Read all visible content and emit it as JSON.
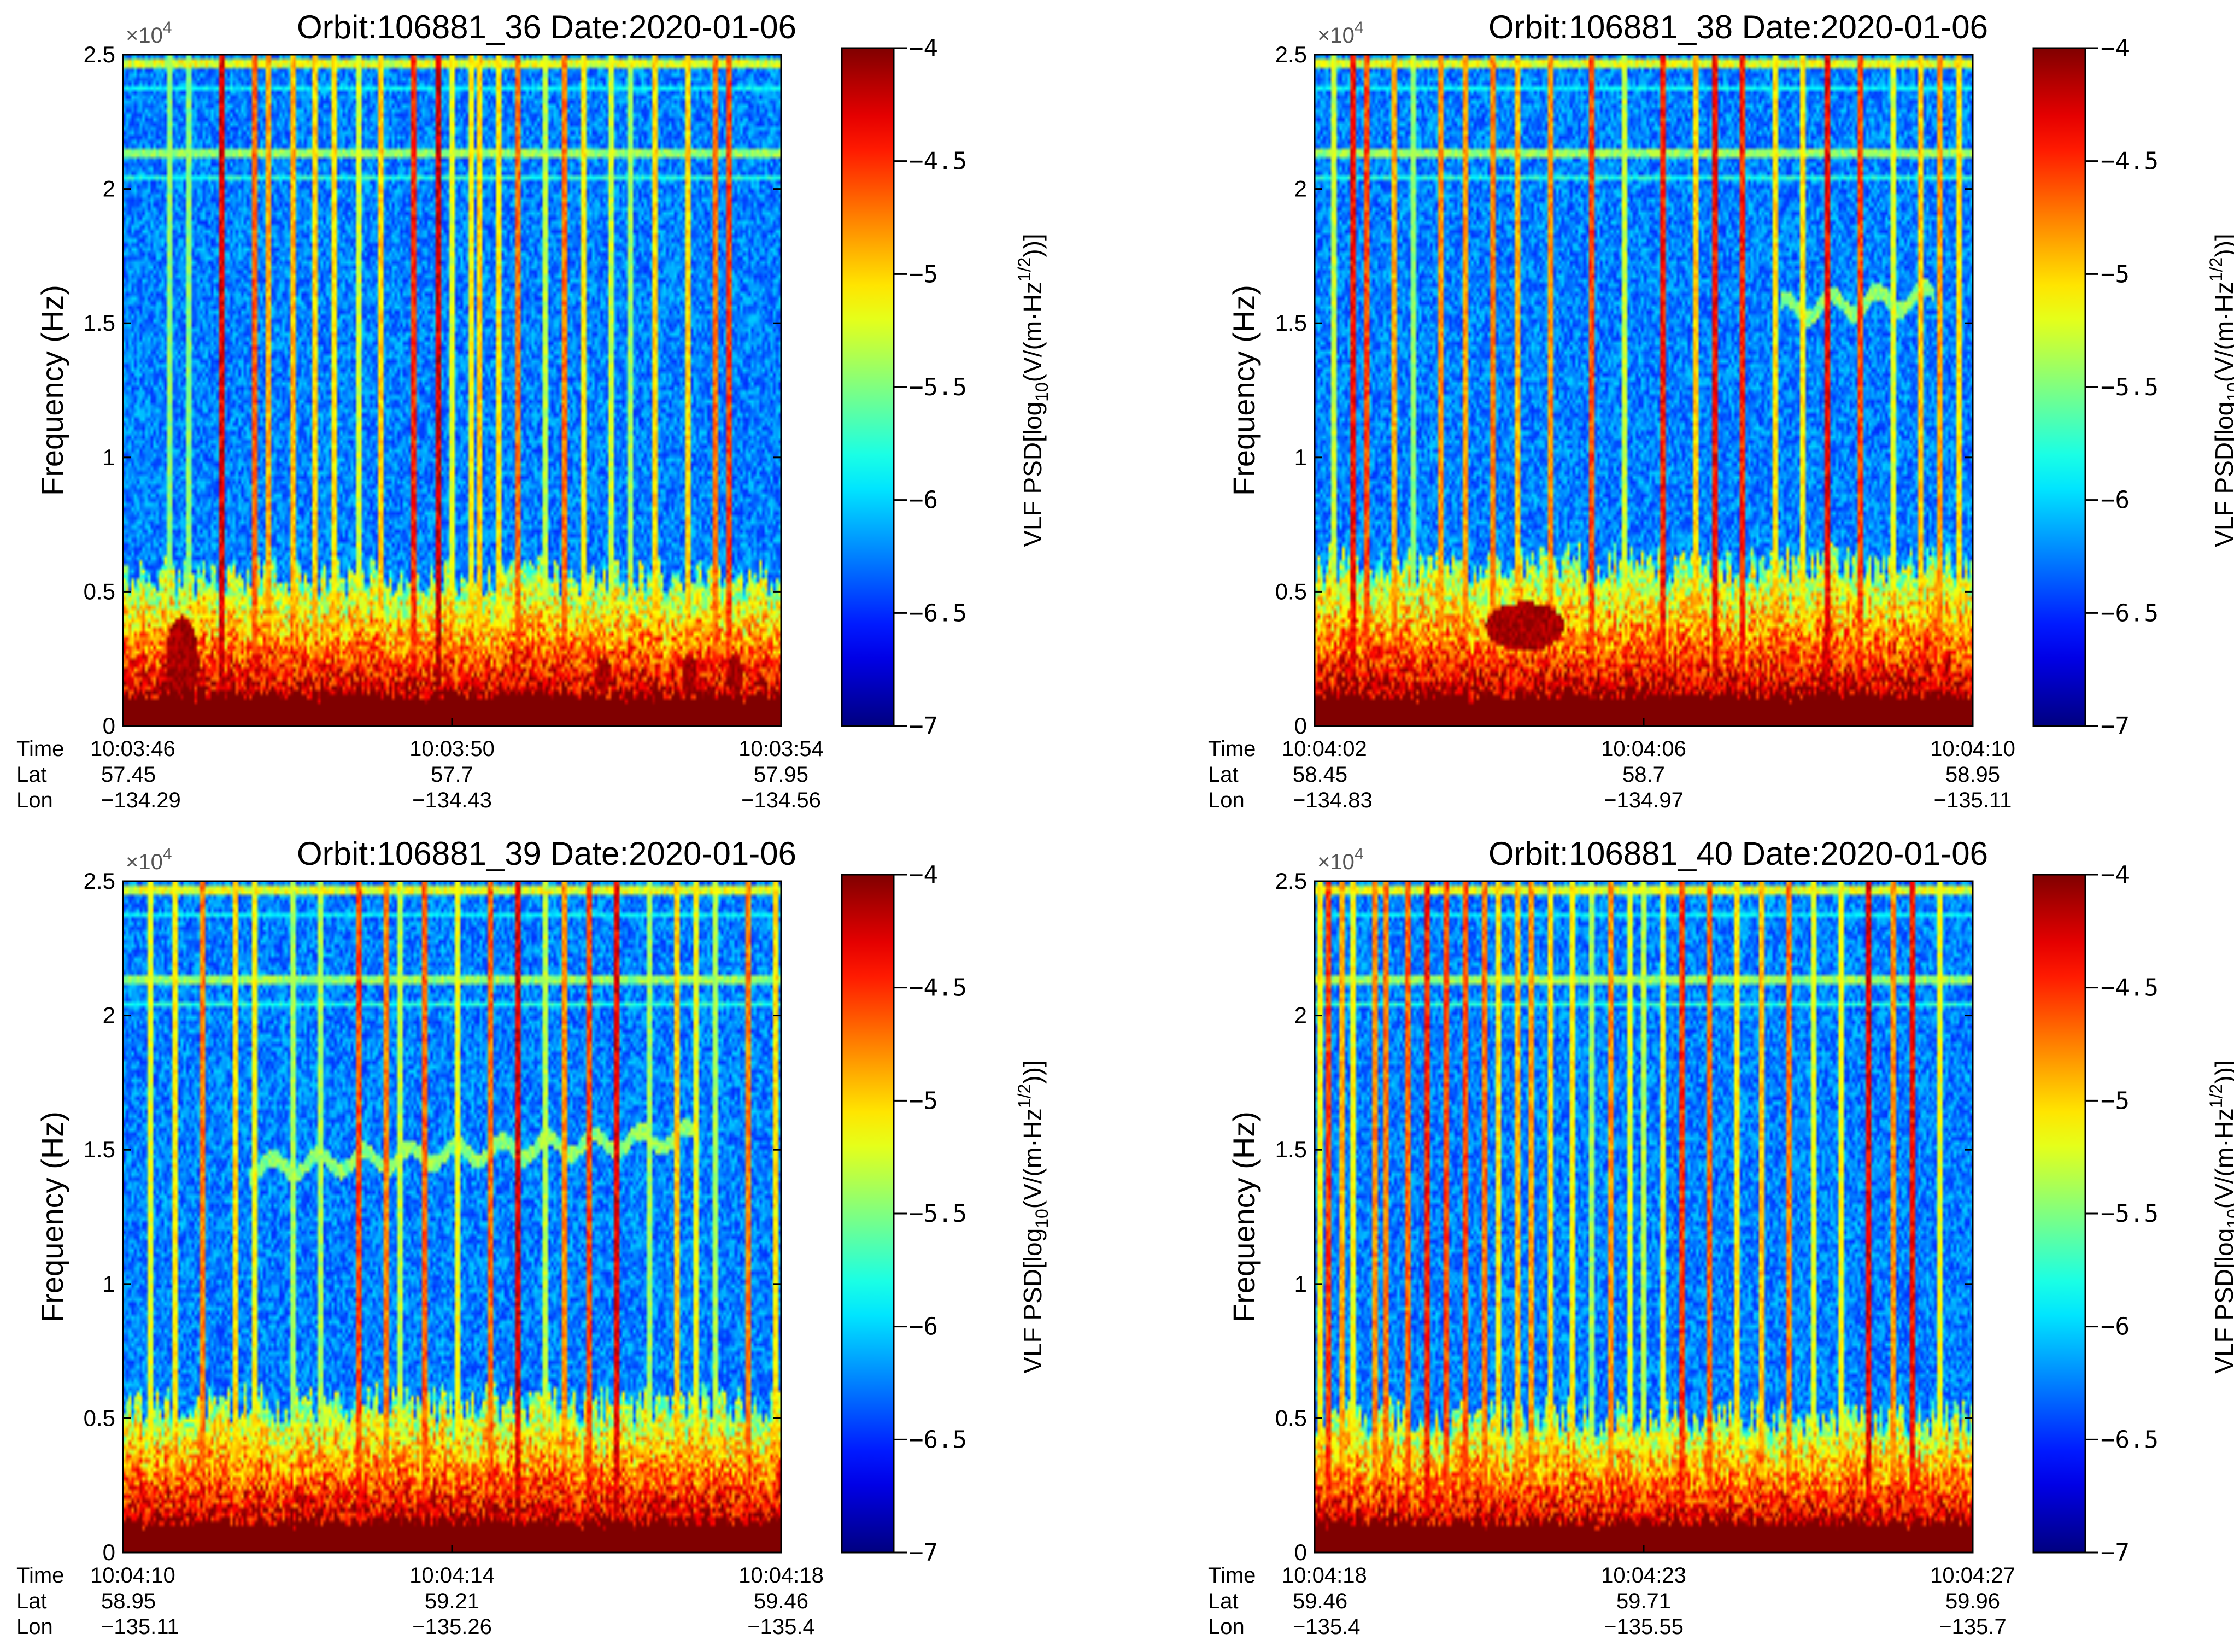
{
  "figure": {
    "colormap": "jet",
    "colors": {
      "jet_dark_blue": "#00008f",
      "jet_blue": "#0000ff",
      "jet_cyan": "#00ffff",
      "jet_yellow": "#ffff00",
      "jet_red": "#ff0000",
      "jet_dark_red": "#800000",
      "axis": "#000000",
      "background": "#ffffff"
    }
  },
  "chart_data": [
    {
      "type": "heatmap",
      "title": "Orbit:106881_36  Date:2020-01-06",
      "ylabel": "Frequency (Hz)",
      "y_multiplier": "×10",
      "y_multiplier_exp": "4",
      "ylim": [
        0,
        25000
      ],
      "y_ticks": [
        "0",
        "0.5",
        "1",
        "1.5",
        "2",
        "2.5"
      ],
      "x_ticks": {
        "Time": [
          "10:03:46",
          "10:03:50",
          "10:03:54"
        ],
        "Lat": [
          "57.45",
          "57.7",
          "57.95"
        ],
        "Lon": [
          "−134.29",
          "−134.43",
          "−134.56"
        ]
      },
      "row_labels": [
        "Time",
        "Lat",
        "Lon"
      ],
      "colorbar": {
        "label_prefix": "VLF PSD[log",
        "label_sub": "10",
        "label_mid": "(V/(m·Hz",
        "label_sup": "1/2",
        "label_suffix": "))]",
        "ticks": [
          "−4",
          "−4.5",
          "−5",
          "−5.5",
          "−6",
          "−6.5",
          "−7"
        ],
        "range": [
          -7,
          -4
        ]
      },
      "features": {
        "seed": 36,
        "spikes": [
          0.07,
          0.1,
          0.15,
          0.2,
          0.22,
          0.26,
          0.29,
          0.32,
          0.36,
          0.39,
          0.44,
          0.48,
          0.5,
          0.53,
          0.54,
          0.57,
          0.6,
          0.64,
          0.67,
          0.7,
          0.74,
          0.77,
          0.81,
          0.86,
          0.9,
          0.92
        ],
        "blobs": [
          {
            "t": 0.09,
            "f": 2400,
            "dt": 0.025,
            "df": 1700
          },
          {
            "t": 0.73,
            "f": 1900,
            "dt": 0.012,
            "df": 700
          },
          {
            "t": 0.86,
            "f": 1900,
            "dt": 0.012,
            "df": 800
          },
          {
            "t": 0.93,
            "f": 1900,
            "dt": 0.012,
            "df": 800
          }
        ],
        "traces": [],
        "lowband_height": 5500
      }
    },
    {
      "type": "heatmap",
      "title": "Orbit:106881_38  Date:2020-01-06",
      "ylabel": "Frequency (Hz)",
      "y_multiplier": "×10",
      "y_multiplier_exp": "4",
      "ylim": [
        0,
        25000
      ],
      "y_ticks": [
        "0",
        "0.5",
        "1",
        "1.5",
        "2",
        "2.5"
      ],
      "x_ticks": {
        "Time": [
          "10:04:02",
          "10:04:06",
          "10:04:10"
        ],
        "Lat": [
          "58.45",
          "58.7",
          "58.95"
        ],
        "Lon": [
          "−134.83",
          "−134.97",
          "−135.11"
        ]
      },
      "row_labels": [
        "Time",
        "Lat",
        "Lon"
      ],
      "colorbar": {
        "label_prefix": "VLF PSD[log",
        "label_sub": "10",
        "label_mid": "(V/(m·Hz",
        "label_sup": "1/2",
        "label_suffix": "))]",
        "ticks": [
          "−4",
          "−4.5",
          "−5",
          "−5.5",
          "−6",
          "−6.5",
          "−7"
        ],
        "range": [
          -7,
          -4
        ]
      },
      "features": {
        "seed": 38,
        "spikes": [
          0.03,
          0.06,
          0.08,
          0.12,
          0.15,
          0.19,
          0.23,
          0.27,
          0.31,
          0.36,
          0.42,
          0.47,
          0.53,
          0.58,
          0.61,
          0.65,
          0.7,
          0.74,
          0.78,
          0.83,
          0.88,
          0.92,
          0.95,
          0.98
        ],
        "blobs": [
          {
            "t": 0.32,
            "f": 3700,
            "dt": 0.06,
            "df": 900
          }
        ],
        "traces": [
          {
            "t0": 0.71,
            "t1": 0.94,
            "f0": 15500,
            "f1": 16000,
            "wobble": 400
          }
        ],
        "lowband_height": 6000
      }
    },
    {
      "type": "heatmap",
      "title": "Orbit:106881_39  Date:2020-01-06",
      "ylabel": "Frequency (Hz)",
      "y_multiplier": "×10",
      "y_multiplier_exp": "4",
      "ylim": [
        0,
        25000
      ],
      "y_ticks": [
        "0",
        "0.5",
        "1",
        "1.5",
        "2",
        "2.5"
      ],
      "x_ticks": {
        "Time": [
          "10:04:10",
          "10:04:14",
          "10:04:18"
        ],
        "Lat": [
          "58.95",
          "59.21",
          "59.46"
        ],
        "Lon": [
          "−135.11",
          "−135.26",
          "−135.4"
        ]
      },
      "row_labels": [
        "Time",
        "Lat",
        "Lon"
      ],
      "colorbar": {
        "label_prefix": "VLF PSD[log",
        "label_sub": "10",
        "label_mid": "(V/(m·Hz",
        "label_sup": "1/2",
        "label_suffix": "))]",
        "ticks": [
          "−4",
          "−4.5",
          "−5",
          "−5.5",
          "−6",
          "−6.5",
          "−7"
        ],
        "range": [
          -7,
          -4
        ]
      },
      "features": {
        "seed": 39,
        "spikes": [
          0.04,
          0.08,
          0.12,
          0.17,
          0.2,
          0.26,
          0.3,
          0.36,
          0.4,
          0.42,
          0.46,
          0.51,
          0.56,
          0.6,
          0.64,
          0.67,
          0.71,
          0.75,
          0.8,
          0.84,
          0.87,
          0.9,
          0.95,
          0.99
        ],
        "blobs": [],
        "traces": [
          {
            "t0": 0.19,
            "t1": 0.87,
            "f0": 14300,
            "f1": 15500,
            "wobble": 350
          }
        ],
        "lowband_height": 5500
      }
    },
    {
      "type": "heatmap",
      "title": "Orbit:106881_40  Date:2020-01-06",
      "ylabel": "Frequency (Hz)",
      "y_multiplier": "×10",
      "y_multiplier_exp": "4",
      "ylim": [
        0,
        25000
      ],
      "y_ticks": [
        "0",
        "0.5",
        "1",
        "1.5",
        "2",
        "2.5"
      ],
      "x_ticks": {
        "Time": [
          "10:04:18",
          "10:04:23",
          "10:04:27"
        ],
        "Lat": [
          "59.46",
          "59.71",
          "59.96"
        ],
        "Lon": [
          "−135.4",
          "−135.55",
          "−135.7"
        ]
      },
      "row_labels": [
        "Time",
        "Lat",
        "Lon"
      ],
      "colorbar": {
        "label_prefix": "VLF PSD[log",
        "label_sub": "10",
        "label_mid": "(V/(m·Hz",
        "label_sup": "1/2",
        "label_suffix": "))]",
        "ticks": [
          "−4",
          "−4.5",
          "−5",
          "−5.5",
          "−6",
          "−6.5",
          "−7"
        ],
        "range": [
          -7,
          -4
        ]
      },
      "features": {
        "seed": 40,
        "spikes": [
          0.01,
          0.02,
          0.04,
          0.06,
          0.09,
          0.11,
          0.14,
          0.17,
          0.2,
          0.23,
          0.26,
          0.28,
          0.31,
          0.33,
          0.36,
          0.39,
          0.42,
          0.45,
          0.48,
          0.5,
          0.53,
          0.56,
          0.6,
          0.64,
          0.68,
          0.72,
          0.76,
          0.8,
          0.84,
          0.88,
          0.91,
          0.95
        ],
        "blobs": [],
        "traces": [],
        "lowband_height": 5000
      }
    }
  ]
}
